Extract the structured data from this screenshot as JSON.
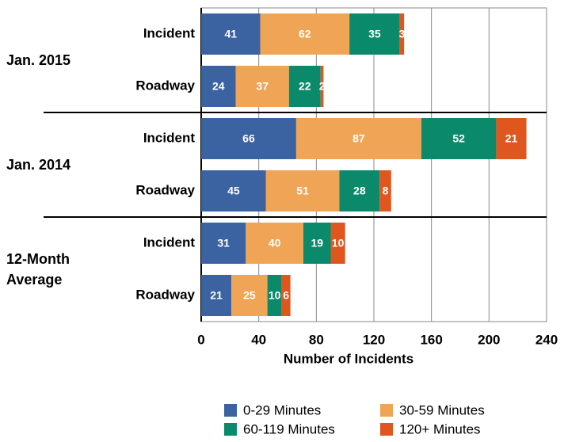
{
  "chart_data": {
    "type": "stacked-barh",
    "xlabel": "Number of Incidents",
    "groups": [
      {
        "name": "Jan. 2015",
        "categories": [
          "Incident",
          "Roadway"
        ]
      },
      {
        "name": "Jan. 2014",
        "categories": [
          "Incident",
          "Roadway"
        ]
      },
      {
        "name": "12-Month Average",
        "categories": [
          "Incident",
          "Roadway"
        ]
      }
    ],
    "series": [
      {
        "name": "0-29 Minutes",
        "color": "#3b62a1",
        "values": [
          41,
          24,
          66,
          45,
          31,
          21
        ]
      },
      {
        "name": "30-59 Minutes",
        "color": "#f0a556",
        "values": [
          62,
          37,
          87,
          51,
          40,
          25
        ]
      },
      {
        "name": "60-119 Minutes",
        "color": "#0b8a6b",
        "values": [
          35,
          22,
          52,
          28,
          19,
          10
        ]
      },
      {
        "name": "120+ Minutes",
        "color": "#e0561f",
        "values": [
          3,
          2,
          21,
          8,
          10,
          6
        ]
      }
    ],
    "xlim": [
      0,
      240
    ],
    "xticks": [
      0,
      40,
      80,
      120,
      160,
      200,
      240
    ],
    "grid": true,
    "legend": "bottom"
  }
}
